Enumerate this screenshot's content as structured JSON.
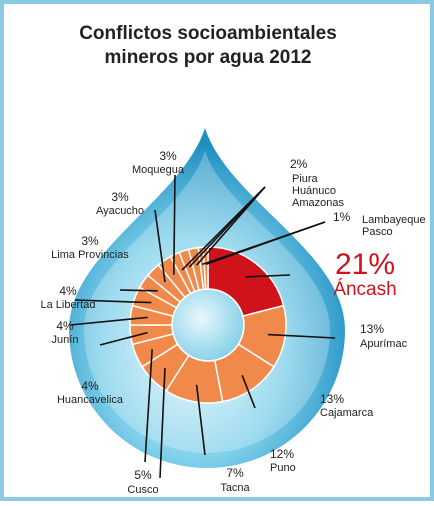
{
  "chart_data": {
    "type": "donut",
    "title": [
      "Conflictos socioambientales",
      "mineros por agua 2012"
    ],
    "groups": [
      {
        "value": 21,
        "value_label": "21%",
        "names": [
          "Áncash"
        ],
        "color": "#d0121b"
      },
      {
        "value": 13,
        "value_label": "13%",
        "names": [
          "Apurímac"
        ],
        "color": "#f0894a"
      },
      {
        "value": 13,
        "value_label": "13%",
        "names": [
          "Cajamarca"
        ],
        "color": "#f0894a"
      },
      {
        "value": 12,
        "value_label": "12%",
        "names": [
          "Puno"
        ],
        "color": "#f0894a"
      },
      {
        "value": 7,
        "value_label": "7%",
        "names": [
          "Tacna"
        ],
        "color": "#f0894a"
      },
      {
        "value": 5,
        "value_label": "5%",
        "names": [
          "Cusco"
        ],
        "color": "#f0894a"
      },
      {
        "value": 4,
        "value_label": "4%",
        "names": [
          "Huancavelica"
        ],
        "color": "#f0894a"
      },
      {
        "value": 4,
        "value_label": "4%",
        "names": [
          "Junín"
        ],
        "color": "#f0894a"
      },
      {
        "value": 4,
        "value_label": "4%",
        "names": [
          "La Libertad"
        ],
        "color": "#f0894a"
      },
      {
        "value": 3,
        "value_label": "3%",
        "names": [
          "Lima Provincias"
        ],
        "color": "#f0894a"
      },
      {
        "value": 3,
        "value_label": "3%",
        "names": [
          "Ayacucho"
        ],
        "color": "#f0894a"
      },
      {
        "value": 3,
        "value_label": "3%",
        "names": [
          "Moquegua"
        ],
        "color": "#f0894a"
      },
      {
        "value": 2,
        "value_label": "2%",
        "names": [
          "Piura",
          "Huánuco",
          "Amazonas"
        ],
        "color": "#f0894a"
      },
      {
        "value": 1,
        "value_label": "1%",
        "names": [
          "Lambayeque",
          "Pasco"
        ],
        "color": "#f0894a"
      }
    ]
  }
}
